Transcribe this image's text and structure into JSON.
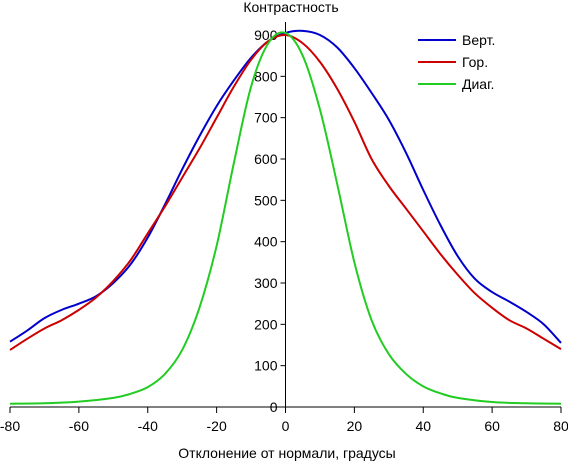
{
  "chart_data": {
    "type": "line",
    "title": "Контрастность",
    "xlabel": "Отклонение от нормали, градусы",
    "ylabel": "",
    "xlim": [
      -80,
      80
    ],
    "ylim": [
      0,
      900
    ],
    "xticks": [
      -80,
      -60,
      -40,
      -20,
      0,
      20,
      40,
      60,
      80
    ],
    "yticks": [
      0,
      100,
      200,
      300,
      400,
      500,
      600,
      700,
      800,
      900
    ],
    "grid": false,
    "legend": "top-right",
    "series": [
      {
        "name": "Верт.",
        "color": "#0000cc",
        "x": [
          -80,
          -75,
          -70,
          -65,
          -60,
          -55,
          -50,
          -45,
          -40,
          -35,
          -30,
          -25,
          -20,
          -15,
          -10,
          -5,
          0,
          5,
          10,
          15,
          20,
          25,
          30,
          35,
          40,
          45,
          50,
          55,
          60,
          65,
          70,
          75,
          80
        ],
        "y": [
          158,
          185,
          215,
          235,
          250,
          268,
          300,
          345,
          410,
          490,
          575,
          655,
          728,
          790,
          845,
          885,
          905,
          910,
          900,
          870,
          820,
          760,
          695,
          615,
          525,
          440,
          365,
          310,
          278,
          255,
          230,
          200,
          155
        ]
      },
      {
        "name": "Гор.",
        "color": "#cc0000",
        "x": [
          -80,
          -75,
          -70,
          -65,
          -60,
          -55,
          -50,
          -45,
          -40,
          -35,
          -30,
          -25,
          -20,
          -15,
          -10,
          -5,
          0,
          5,
          10,
          15,
          20,
          25,
          30,
          35,
          40,
          45,
          50,
          55,
          60,
          65,
          70,
          75,
          80
        ],
        "y": [
          138,
          165,
          190,
          210,
          235,
          265,
          305,
          355,
          420,
          485,
          555,
          625,
          700,
          775,
          840,
          885,
          900,
          880,
          835,
          770,
          690,
          600,
          535,
          480,
          425,
          370,
          320,
          275,
          240,
          210,
          190,
          165,
          140
        ]
      },
      {
        "name": "Диаг.",
        "color": "#22cc22",
        "x": [
          -80,
          -70,
          -60,
          -50,
          -45,
          -40,
          -35,
          -30,
          -25,
          -20,
          -15,
          -10,
          -5,
          0,
          5,
          10,
          15,
          20,
          25,
          30,
          35,
          40,
          45,
          50,
          60,
          70,
          80
        ],
        "y": [
          8,
          9,
          13,
          22,
          32,
          48,
          80,
          138,
          240,
          390,
          590,
          775,
          880,
          905,
          850,
          720,
          540,
          350,
          210,
          128,
          80,
          50,
          33,
          22,
          12,
          9,
          8
        ]
      }
    ]
  }
}
